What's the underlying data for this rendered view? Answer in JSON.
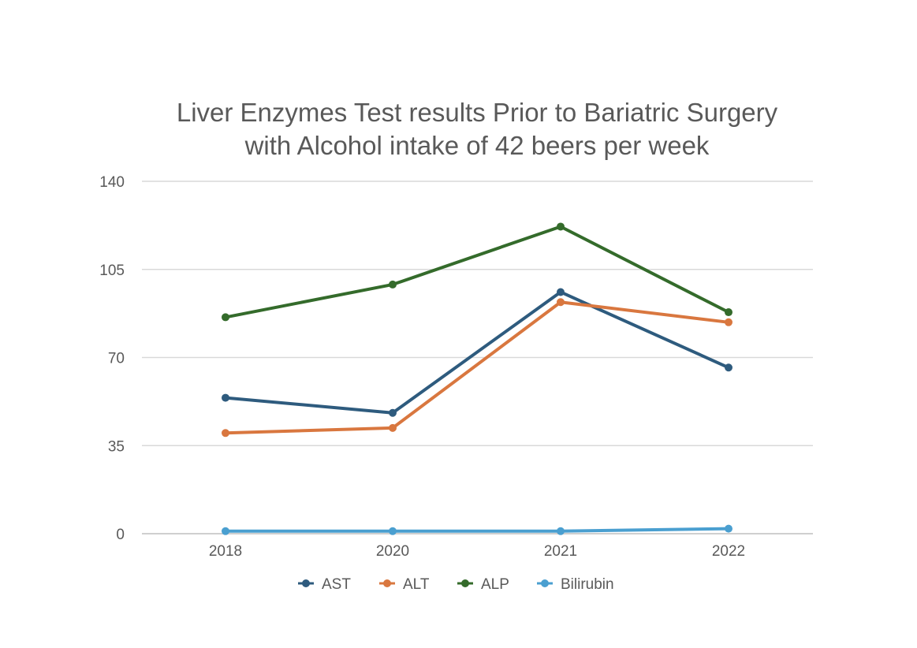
{
  "chart_data": {
    "type": "line",
    "title_lines": [
      "Liver Enzymes Test results Prior to Bariatric Surgery",
      "with Alcohol intake of 42 beers per week"
    ],
    "xlabel": "",
    "ylabel": "",
    "categories": [
      "2018",
      "2020",
      "2021",
      "2022"
    ],
    "ylim": [
      0,
      140
    ],
    "yticks": [
      0,
      35,
      70,
      105,
      140
    ],
    "grid": true,
    "legend_position": "bottom",
    "series": [
      {
        "name": "AST",
        "color": "#2e5b7e",
        "values": [
          54,
          48,
          96,
          66
        ]
      },
      {
        "name": "ALT",
        "color": "#d9773f",
        "values": [
          40,
          42,
          92,
          84
        ]
      },
      {
        "name": "ALP",
        "color": "#346b2b",
        "values": [
          86,
          99,
          122,
          88
        ]
      },
      {
        "name": "Bilirubin",
        "color": "#4a9fd0",
        "values": [
          1,
          1,
          1,
          2
        ]
      }
    ]
  }
}
